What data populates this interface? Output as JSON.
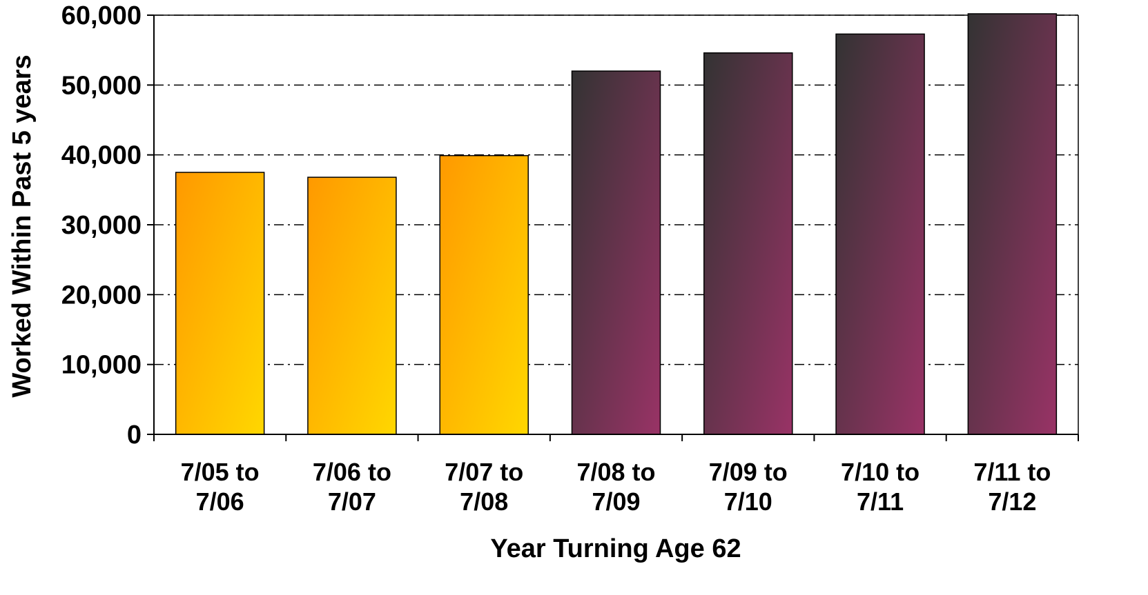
{
  "chart_data": {
    "type": "bar",
    "title": "",
    "xlabel": "Year Turning Age 62",
    "ylabel": "Worked Within Past 5 years",
    "ylim": [
      0,
      60000
    ],
    "yticks": [
      0,
      10000,
      20000,
      30000,
      40000,
      50000,
      60000
    ],
    "ytick_labels": [
      "0",
      "10,000",
      "20,000",
      "30,000",
      "40,000",
      "50,000",
      "60,000"
    ],
    "grid": "horizontal dash-dot",
    "categories": [
      [
        "7/05 to",
        "7/06"
      ],
      [
        "7/06 to",
        "7/07"
      ],
      [
        "7/07 to",
        "7/08"
      ],
      [
        "7/08 to",
        "7/09"
      ],
      [
        "7/09 to",
        "7/10"
      ],
      [
        "7/10 to",
        "7/11"
      ],
      [
        "7/11 to",
        "7/12"
      ]
    ],
    "values": [
      37500,
      36800,
      39900,
      52000,
      54600,
      57300,
      60200
    ],
    "bar_groups": [
      "actual",
      "actual",
      "actual",
      "projected",
      "projected",
      "projected",
      "projected"
    ],
    "colors": {
      "actual_start": "#FF9900",
      "actual_end": "#FFD700",
      "projected_start": "#333333",
      "projected_end": "#993366",
      "gridline": "#000000",
      "bar_outline": "#000000"
    }
  }
}
